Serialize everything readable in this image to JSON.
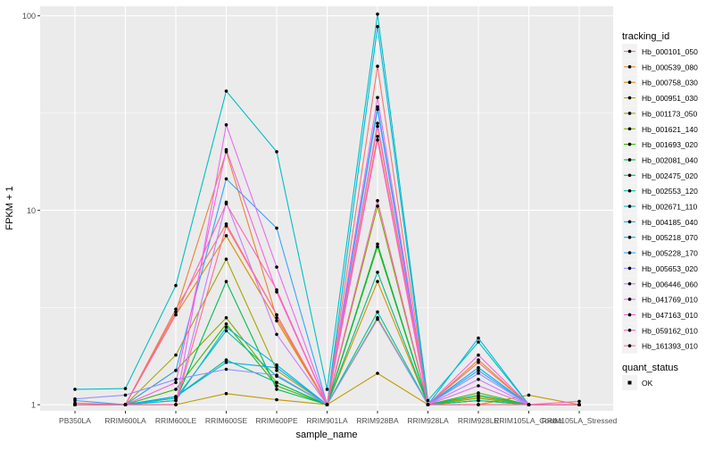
{
  "chart_data": {
    "type": "line",
    "xlabel": "sample_name",
    "ylabel": "FPKM + 1",
    "y_scale": "log10",
    "ylim": [
      0.93,
      112
    ],
    "y_ticks": [
      1,
      10,
      100
    ],
    "y_tick_labels": [
      "1",
      "10",
      "100"
    ],
    "grid": true,
    "legend_placement": "right",
    "categories": [
      "PB350LA",
      "RRIM600LA",
      "RRIM600LE",
      "RRIM600SE",
      "RRIM600PE",
      "RRIM901LA",
      "RRIM928BA",
      "RRIM928LA",
      "RRIM928LE",
      "RRIM105LA_Control",
      "RRIM105LA_Stressed"
    ],
    "legend_title": "tracking_id",
    "series": [
      {
        "name": "Hb_000101_050",
        "color": "#F8766D",
        "values": [
          1.02,
          1.0,
          3.1,
          8.5,
          2.9,
          1.0,
          55,
          1.0,
          1.65,
          1.0,
          1.0
        ]
      },
      {
        "name": "Hb_000539_080",
        "color": "#EA8331",
        "values": [
          1.0,
          1.0,
          3.0,
          20.0,
          2.8,
          1.0,
          24,
          1.0,
          1.7,
          1.0,
          1.0
        ]
      },
      {
        "name": "Hb_000758_030",
        "color": "#D89000",
        "values": [
          1.0,
          1.0,
          2.9,
          7.4,
          2.7,
          1.0,
          4.3,
          1.0,
          1.1,
          1.0,
          1.0
        ]
      },
      {
        "name": "Hb_000951_030",
        "color": "#C09B00",
        "values": [
          1.0,
          1.0,
          1.0,
          1.14,
          1.06,
          1.0,
          1.45,
          1.0,
          1.0,
          1.12,
          1.0
        ]
      },
      {
        "name": "Hb_001173_050",
        "color": "#A3A500",
        "values": [
          1.0,
          1.0,
          1.8,
          5.6,
          1.5,
          1.0,
          2.8,
          1.0,
          1.05,
          1.0,
          1.0
        ]
      },
      {
        "name": "Hb_001621_140",
        "color": "#7CAE00",
        "values": [
          1.0,
          1.0,
          1.5,
          2.8,
          1.3,
          1.0,
          10.5,
          1.0,
          1.08,
          1.0,
          1.0
        ]
      },
      {
        "name": "Hb_001693_020",
        "color": "#39B600",
        "values": [
          1.0,
          1.0,
          1.2,
          2.6,
          1.25,
          1.0,
          6.5,
          1.0,
          1.15,
          1.0,
          1.0
        ]
      },
      {
        "name": "Hb_002081_040",
        "color": "#00BB4E",
        "values": [
          1.0,
          1.0,
          1.05,
          4.3,
          1.2,
          1.0,
          6.7,
          1.0,
          1.05,
          1.0,
          1.0
        ]
      },
      {
        "name": "Hb_002475_020",
        "color": "#00BF7D",
        "values": [
          1.0,
          1.0,
          1.1,
          1.7,
          1.3,
          1.0,
          4.8,
          1.0,
          1.12,
          1.0,
          1.0
        ]
      },
      {
        "name": "Hb_002553_120",
        "color": "#00C1A3",
        "values": [
          1.0,
          1.0,
          1.08,
          2.4,
          1.4,
          1.0,
          3.0,
          1.0,
          1.05,
          1.0,
          1.0
        ]
      },
      {
        "name": "Hb_002671_110",
        "color": "#00BFC4",
        "values": [
          1.2,
          1.21,
          4.1,
          41,
          20,
          1.2,
          102,
          1.05,
          2.1,
          1.0,
          1.0
        ]
      },
      {
        "name": "Hb_004185_040",
        "color": "#00BAE0",
        "values": [
          1.0,
          1.0,
          1.05,
          2.5,
          1.6,
          1.0,
          88,
          1.0,
          2.2,
          1.0,
          1.0
        ]
      },
      {
        "name": "Hb_005218_070",
        "color": "#00B0F6",
        "values": [
          1.0,
          1.0,
          1.1,
          1.65,
          1.55,
          1.0,
          34,
          1.0,
          1.55,
          1.0,
          1.0
        ]
      },
      {
        "name": "Hb_005228_170",
        "color": "#35A2FF",
        "values": [
          1.05,
          1.0,
          1.5,
          14.5,
          8.1,
          1.0,
          33,
          1.0,
          1.5,
          1.0,
          1.0
        ]
      },
      {
        "name": "Hb_005653_020",
        "color": "#9590FF",
        "values": [
          1.07,
          1.12,
          1.35,
          1.52,
          1.42,
          1.0,
          2.75,
          1.0,
          1.45,
          1.0,
          1.0
        ]
      },
      {
        "name": "Hb_006446_060",
        "color": "#C77CFF",
        "values": [
          1.0,
          1.0,
          1.0,
          11.0,
          2.3,
          1.0,
          28,
          1.0,
          1.35,
          1.0,
          1.0
        ]
      },
      {
        "name": "Hb_041769_010",
        "color": "#E76BF3",
        "values": [
          1.0,
          1.0,
          1.0,
          27.5,
          5.1,
          1.0,
          38,
          1.0,
          1.25,
          1.0,
          1.0
        ]
      },
      {
        "name": "Hb_047163_010",
        "color": "#FA62DB",
        "values": [
          1.0,
          1.0,
          1.3,
          20.5,
          3.8,
          1.0,
          23,
          1.0,
          1.8,
          1.0,
          1.0
        ]
      },
      {
        "name": "Hb_059162_010",
        "color": "#FF62BC",
        "values": [
          1.0,
          1.0,
          2.9,
          10.8,
          3.9,
          1.0,
          11.2,
          1.0,
          1.0,
          1.0,
          1.04
        ]
      },
      {
        "name": "Hb_161393_010",
        "color": "#FF6C91",
        "values": [
          1.0,
          1.0,
          1.0,
          8.3,
          2.9,
          1.0,
          27,
          1.0,
          1.0,
          1.0,
          1.0
        ]
      }
    ],
    "legend2_title": "quant_status",
    "legend2_items": [
      {
        "label": "OK",
        "color": "#000000"
      }
    ]
  }
}
